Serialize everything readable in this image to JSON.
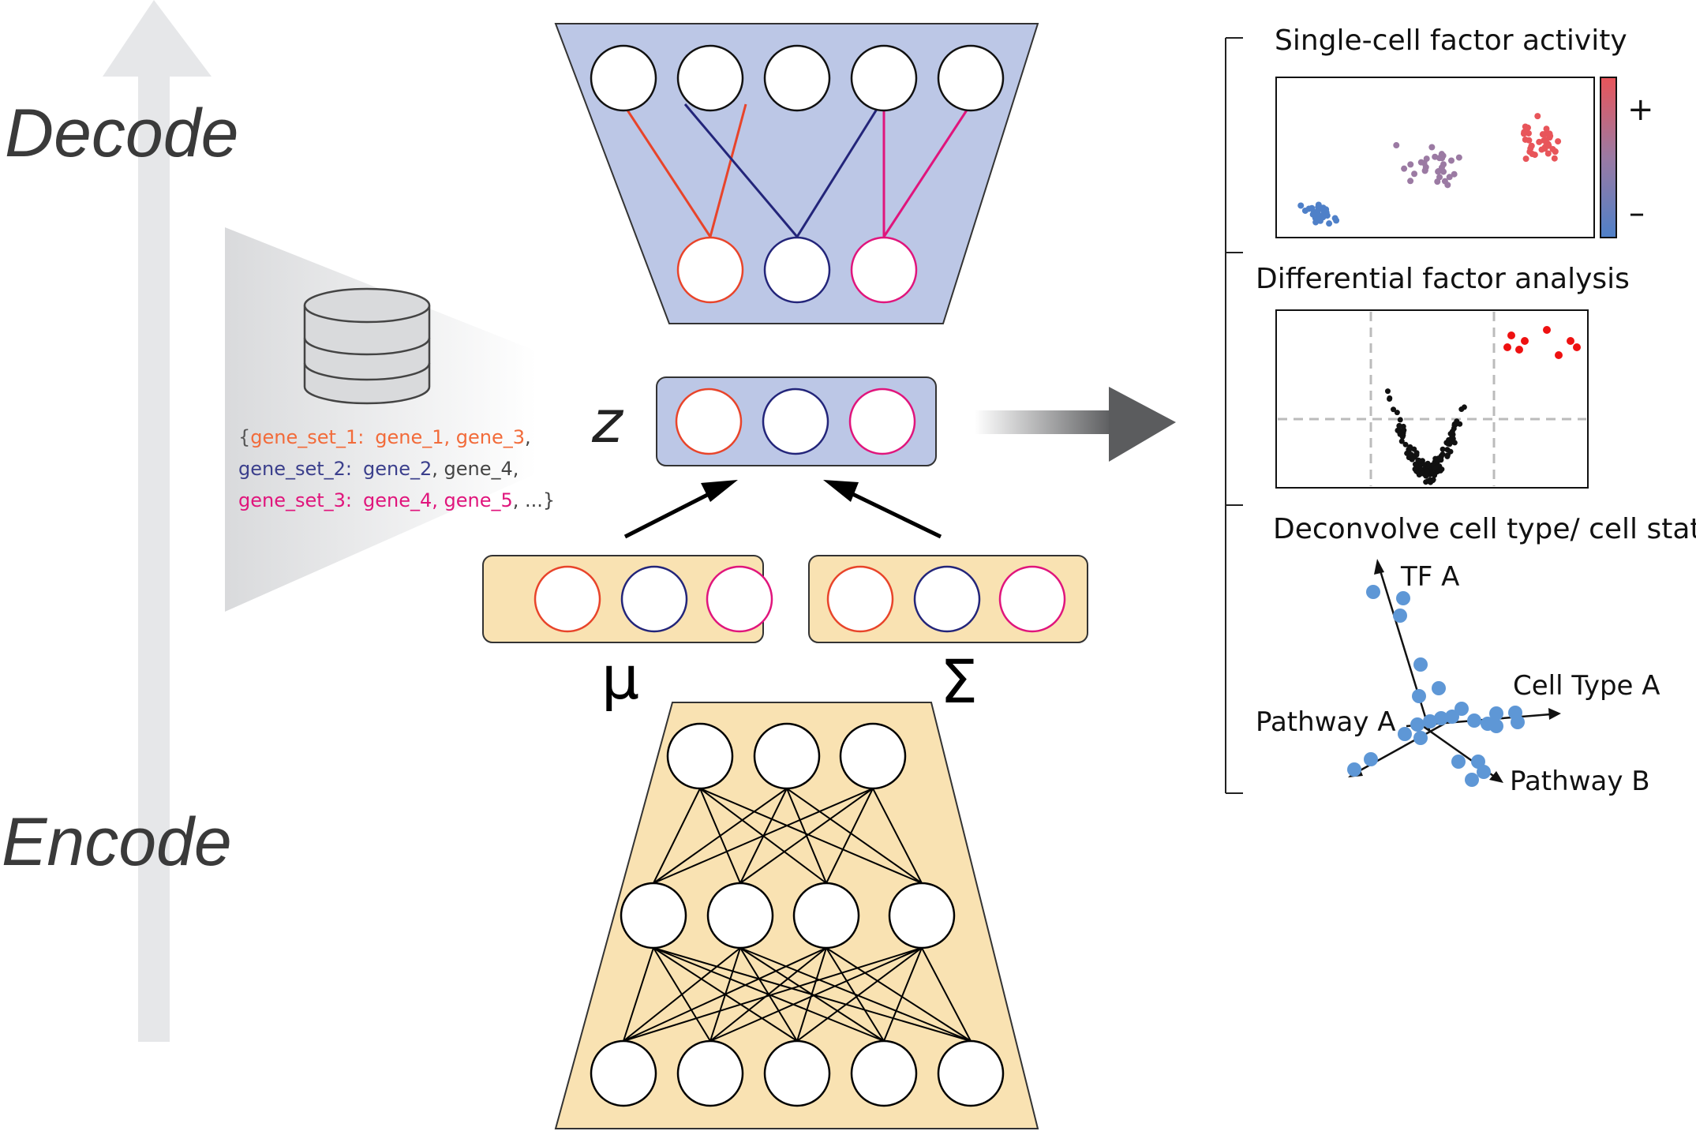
{
  "labels": {
    "decode": "Decode",
    "encode": "Encode",
    "z": "z",
    "mu": "μ",
    "sigma": "Σ"
  },
  "gene_sets": {
    "open_brace": "{",
    "line1_key": "gene_set_1:",
    "line1_genes": "gene_1, gene_3",
    "line1_trail": ",",
    "line2_key": "gene_set_2:",
    "line2_gene_a": "gene_2",
    "line2_gene_b": ", gene_4,",
    "line3_key": "gene_set_3:",
    "line3_genes": "gene_4, gene_5",
    "line3_trail": ", ...}"
  },
  "panels": {
    "single_cell": {
      "title": "Single-cell factor activity",
      "plus": "+",
      "minus": "–"
    },
    "differential": {
      "title": "Differential factor analysis"
    },
    "deconvolve": {
      "title": "Deconvolve cell type/ cell state",
      "axis_tf": "TF A",
      "axis_cell_type": "Cell Type A",
      "axis_pathway_a": "Pathway A",
      "axis_pathway_b": "Pathway B"
    }
  },
  "colors": {
    "encoder_fill": "#f9e2b2",
    "decoder_fill": "#bcc7e6",
    "red": "#e8442a",
    "blue": "#23257a",
    "pink": "#e0157c",
    "dot_blue": "#5e97d6",
    "arrow_gray": "#e6e7e9"
  }
}
